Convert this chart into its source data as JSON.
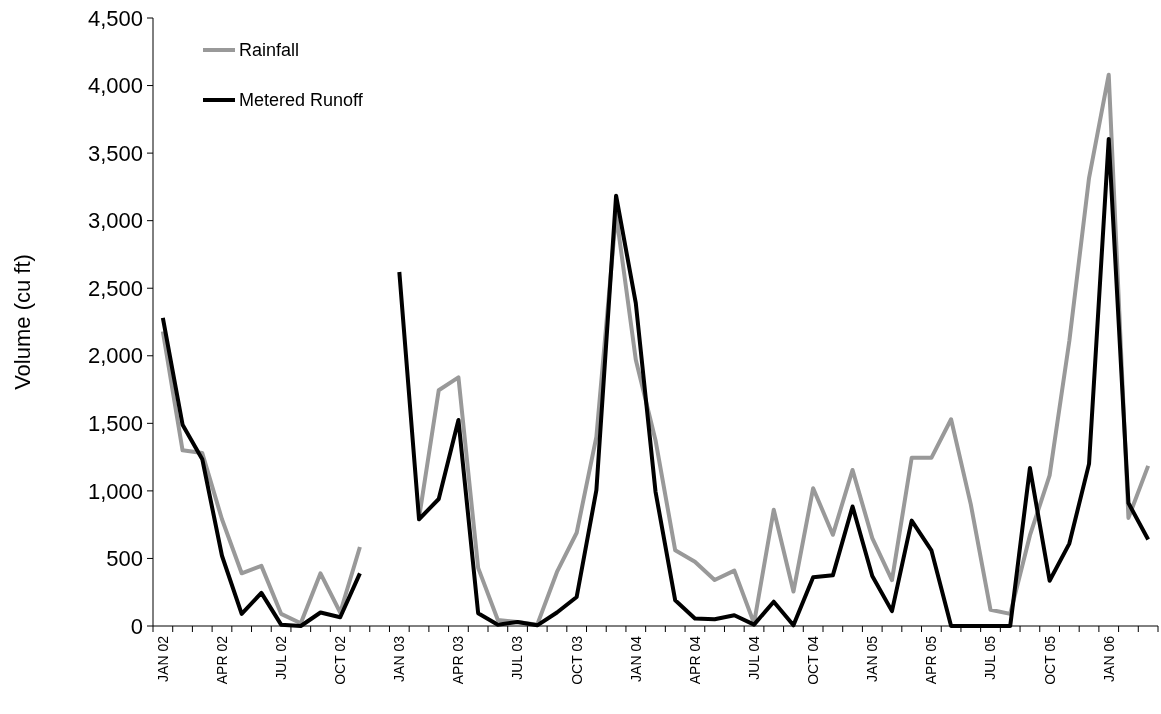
{
  "chart_data": {
    "type": "line",
    "ylabel": "Volume (cu ft)",
    "categories": [
      "JAN 02",
      null,
      null,
      "APR 02",
      null,
      null,
      "JUL 02",
      null,
      null,
      "OCT 02",
      null,
      null,
      "JAN 03",
      null,
      null,
      "APR 03",
      null,
      null,
      "JUL 03",
      null,
      null,
      "OCT 03",
      null,
      null,
      "JAN 04",
      null,
      null,
      "APR 04",
      null,
      null,
      "JUL 04",
      null,
      null,
      "OCT 04",
      null,
      null,
      "JAN 05",
      null,
      null,
      "APR 05",
      null,
      null,
      "JUL 05",
      null,
      null,
      "OCT 05",
      null,
      null,
      "JAN 06",
      null,
      null
    ],
    "series": [
      {
        "name": "Rainfall",
        "color": "#999999",
        "values": [
          2180,
          1300,
          1280,
          790,
          390,
          445,
          90,
          20,
          390,
          100,
          585,
          null,
          null,
          800,
          1745,
          1840,
          430,
          45,
          30,
          10,
          400,
          690,
          1400,
          3050,
          1970,
          1375,
          560,
          475,
          340,
          410,
          20,
          860,
          255,
          1020,
          675,
          1155,
          650,
          340,
          1245,
          1245,
          1530,
          900,
          120,
          90,
          670,
          1115,
          2110,
          3315,
          4080,
          800,
          1185
        ]
      },
      {
        "name": "Metered Runoff",
        "color": "#000000",
        "values": [
          2280,
          1490,
          1235,
          520,
          90,
          245,
          10,
          0,
          100,
          65,
          390,
          null,
          2620,
          790,
          940,
          1525,
          95,
          10,
          30,
          5,
          100,
          215,
          1005,
          3185,
          2390,
          995,
          190,
          55,
          50,
          80,
          10,
          180,
          5,
          360,
          375,
          885,
          370,
          110,
          780,
          560,
          0,
          0,
          0,
          0,
          1170,
          335,
          610,
          1200,
          3605,
          910,
          640
        ]
      }
    ],
    "ylim": [
      0,
      4500
    ],
    "yticks": [
      {
        "value": 0,
        "label": "0"
      },
      {
        "value": 500,
        "label": "500"
      },
      {
        "value": 1000,
        "label": "1,000"
      },
      {
        "value": 1500,
        "label": "1,500"
      },
      {
        "value": 2000,
        "label": "2,000"
      },
      {
        "value": 2500,
        "label": "2,500"
      },
      {
        "value": 3000,
        "label": "3,000"
      },
      {
        "value": 3500,
        "label": "3,500"
      },
      {
        "value": 4000,
        "label": "4,000"
      },
      {
        "value": 4500,
        "label": "4,500"
      }
    ],
    "grid": false,
    "legend": "top left",
    "marker": "none",
    "line_style": "solid"
  }
}
